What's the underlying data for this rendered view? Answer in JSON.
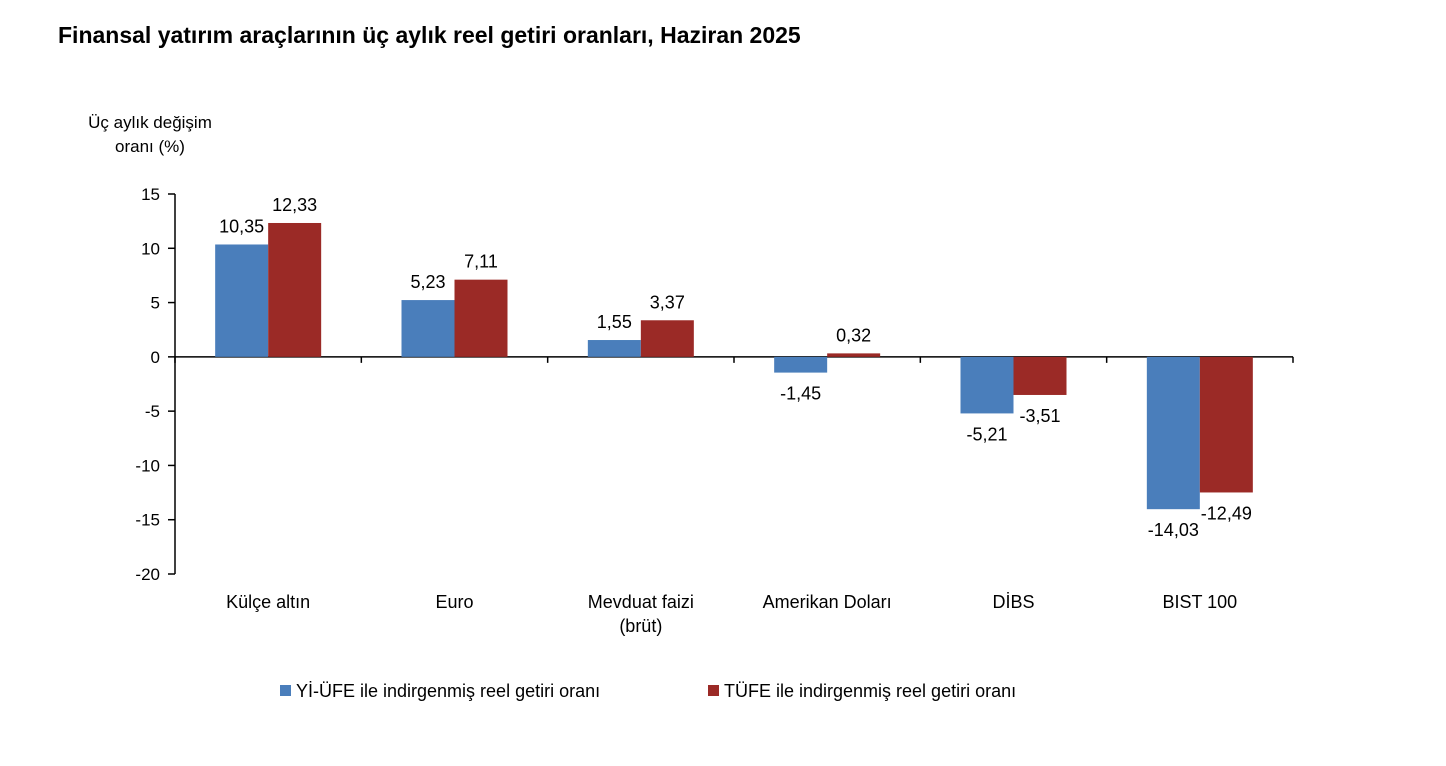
{
  "chart_data": {
    "type": "bar",
    "title": "Finansal yatırım araçlarının üç aylık reel getiri oranları, Haziran 2025",
    "ylabel": [
      "Üç aylık değişim",
      "oranı (%)"
    ],
    "xlabel": "",
    "ylim": [
      -20,
      15
    ],
    "yticks": [
      15,
      10,
      5,
      0,
      -5,
      -10,
      -15,
      -20
    ],
    "categories": [
      [
        "Külçe altın"
      ],
      [
        "Euro"
      ],
      [
        "Mevduat faizi",
        "(brüt)"
      ],
      [
        "Amerikan Doları"
      ],
      [
        "DİBS"
      ],
      [
        "BIST 100"
      ]
    ],
    "series": [
      {
        "name": "Yİ-ÜFE ile indirgenmiş reel getiri oranı",
        "color": "#4a7ebb",
        "values": [
          10.35,
          5.23,
          1.55,
          -1.45,
          -5.21,
          -14.03
        ],
        "labels": [
          "10,35",
          "5,23",
          "1,55",
          "-1,45",
          "-5,21",
          "-14,03"
        ]
      },
      {
        "name": "TÜFE ile indirgenmiş reel getiri oranı",
        "color": "#9b2a26",
        "values": [
          12.33,
          7.11,
          3.37,
          0.32,
          -3.51,
          -12.49
        ],
        "labels": [
          "12,33",
          "7,11",
          "3,37",
          "0,32",
          "-3,51",
          "-12,49"
        ]
      }
    ],
    "grid": false,
    "legend": "bottom"
  }
}
